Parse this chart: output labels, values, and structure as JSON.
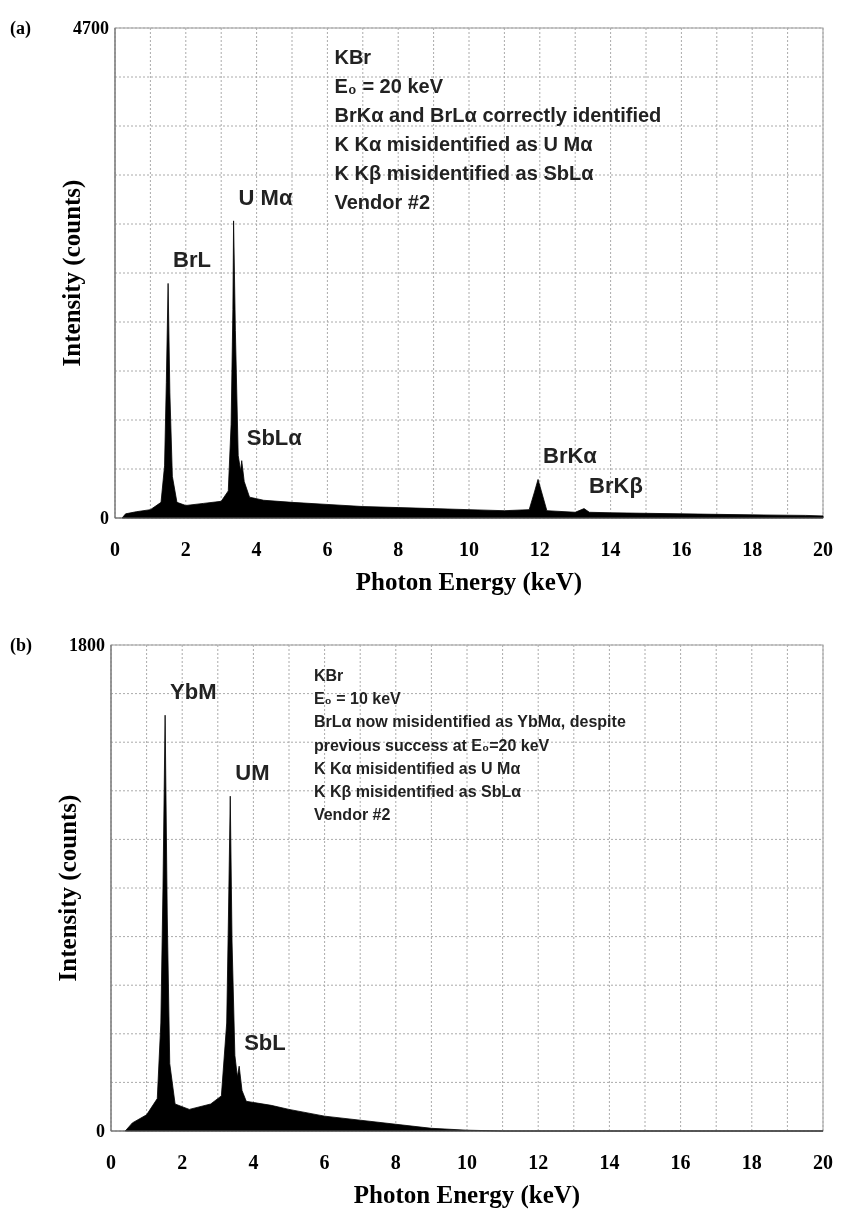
{
  "chart_data": [
    {
      "type": "area",
      "title": "(a)",
      "xlabel": "Photon Energy (keV)",
      "ylabel": "Intensity (counts)",
      "xlim": [
        0,
        20
      ],
      "ylim": [
        0,
        4700
      ],
      "xticks": [
        0,
        {
          "value": 1,
          "label": null
        },
        2,
        {
          "value": 3,
          "label": null
        },
        4,
        {
          "value": 5,
          "label": null
        },
        6,
        {
          "value": 7,
          "label": null
        },
        8,
        {
          "value": 9,
          "label": null
        },
        10,
        {
          "value": 11,
          "label": null
        },
        12,
        {
          "value": 13,
          "label": null
        },
        14,
        {
          "value": 15,
          "label": null
        },
        16,
        {
          "value": 17,
          "label": null
        },
        18,
        {
          "value": 19,
          "label": null
        },
        20
      ],
      "yticks": [
        0,
        {
          "value": 470,
          "label": null
        },
        {
          "value": 940,
          "label": null
        },
        {
          "value": 1410,
          "label": null
        },
        {
          "value": 1880,
          "label": null
        },
        {
          "value": 2350,
          "label": null
        },
        {
          "value": 2820,
          "label": null
        },
        {
          "value": 3290,
          "label": null
        },
        {
          "value": 3760,
          "label": null
        },
        {
          "value": 4230,
          "label": null
        },
        4700
      ],
      "grid": true,
      "series": [
        {
          "color": "#000000",
          "x": [
            0.2,
            0.3,
            0.6,
            1.0,
            1.3,
            1.4,
            1.45,
            1.5,
            1.55,
            1.62,
            1.75,
            2.0,
            2.5,
            3.0,
            3.2,
            3.28,
            3.33,
            3.35,
            3.4,
            3.48,
            3.55,
            3.58,
            3.65,
            3.8,
            4.2,
            5,
            6,
            7,
            8,
            9,
            10,
            11,
            11.7,
            11.85,
            11.95,
            12.05,
            12.2,
            13,
            13.25,
            13.4,
            14,
            16,
            18,
            19.5,
            20
          ],
          "values": [
            0,
            40,
            60,
            80,
            150,
            500,
            1300,
            2250,
            1200,
            400,
            150,
            120,
            140,
            160,
            260,
            900,
            2000,
            2850,
            1800,
            600,
            450,
            550,
            350,
            200,
            170,
            150,
            130,
            110,
            100,
            90,
            80,
            70,
            80,
            250,
            370,
            250,
            70,
            55,
            90,
            55,
            50,
            40,
            30,
            25,
            20
          ]
        }
      ],
      "annotations": [
        {
          "text": "BrL",
          "x": 1.5,
          "y": 2250
        },
        {
          "text": "U Mα",
          "x": 3.35,
          "y": 2850
        },
        {
          "text": "SbLα",
          "x": 3.58,
          "y": 550
        },
        {
          "text": "BrKα",
          "x": 11.95,
          "y": 370
        },
        {
          "text": "BrKβ",
          "x": 13.25,
          "y": 90
        },
        "KBr",
        "E₀ = 20 keV",
        "BrKα and BrLα correctly identified",
        "K Kα misidentified as U Mα",
        "K Kβ misidentified as SbLα",
        "Vendor #2"
      ]
    },
    {
      "type": "area",
      "title": "(b)",
      "xlabel": "Photon Energy (keV)",
      "ylabel": "Intensity (counts)",
      "xlim": [
        0,
        20
      ],
      "ylim": [
        0,
        1800
      ],
      "xticks": [
        0,
        {
          "value": 1,
          "label": null
        },
        2,
        {
          "value": 3,
          "label": null
        },
        4,
        {
          "value": 5,
          "label": null
        },
        6,
        {
          "value": 7,
          "label": null
        },
        8,
        {
          "value": 9,
          "label": null
        },
        10,
        {
          "value": 11,
          "label": null
        },
        12,
        {
          "value": 13,
          "label": null
        },
        14,
        {
          "value": 15,
          "label": null
        },
        16,
        {
          "value": 17,
          "label": null
        },
        18,
        {
          "value": 19,
          "label": null
        },
        20
      ],
      "yticks": [
        0,
        {
          "value": 180,
          "label": null
        },
        {
          "value": 360,
          "label": null
        },
        {
          "value": 540,
          "label": null
        },
        {
          "value": 720,
          "label": null
        },
        {
          "value": 900,
          "label": null
        },
        {
          "value": 1080,
          "label": null
        },
        {
          "value": 1260,
          "label": null
        },
        {
          "value": 1440,
          "label": null
        },
        {
          "value": 1620,
          "label": null
        },
        1800
      ],
      "grid": true,
      "series": [
        {
          "color": "#000000",
          "x": [
            0.4,
            0.6,
            1.0,
            1.3,
            1.4,
            1.46,
            1.52,
            1.58,
            1.65,
            1.8,
            2.2,
            2.8,
            3.1,
            3.25,
            3.3,
            3.35,
            3.4,
            3.48,
            3.55,
            3.6,
            3.68,
            3.8,
            4.5,
            5,
            6,
            7,
            8,
            9,
            10,
            11,
            20
          ],
          "values": [
            0,
            30,
            60,
            120,
            400,
            900,
            1540,
            800,
            250,
            100,
            80,
            100,
            130,
            400,
            800,
            1240,
            700,
            280,
            200,
            240,
            150,
            110,
            95,
            80,
            55,
            40,
            25,
            10,
            3,
            0,
            0
          ]
        }
      ],
      "annotations": [
        {
          "text": "YbM",
          "x": 1.52,
          "y": 1540
        },
        {
          "text": "UM",
          "x": 3.35,
          "y": 1240
        },
        {
          "text": "SbL",
          "x": 3.6,
          "y": 240
        },
        "KBr",
        "E₀ = 10 keV",
        "BrLα now misidentified as YbMα, despite",
        "previous success at E₀=20 keV",
        "K Kα misidentified as U Mα",
        "K Kβ misidentified as SbLα",
        "Vendor #2"
      ]
    }
  ]
}
